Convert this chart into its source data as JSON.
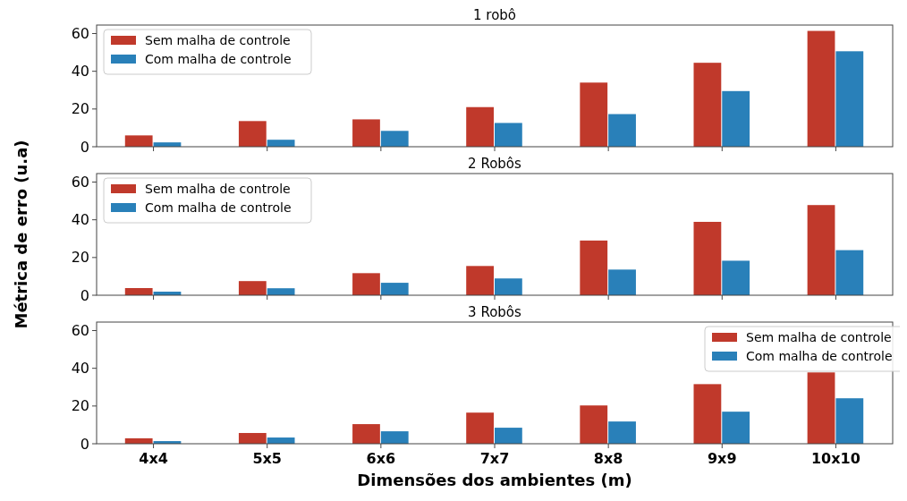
{
  "chart_data": [
    {
      "type": "bar",
      "title": "1 robô",
      "categories": [
        null,
        null,
        null,
        null,
        null,
        null,
        null
      ],
      "series": [
        {
          "name": "Sem malha de controle",
          "color": "#c0392b",
          "values": [
            6,
            13.6,
            14.5,
            21,
            34,
            44.5,
            61.4
          ]
        },
        {
          "name": "Com malha de controle",
          "color": "#2980b9",
          "values": [
            2.3,
            3.7,
            8.4,
            12.6,
            17.3,
            29.5,
            50.6
          ]
        }
      ],
      "ylim": [
        0,
        64.5
      ],
      "yticks": [
        0,
        20,
        40,
        60
      ],
      "legend": "top left"
    },
    {
      "type": "bar",
      "title": "2 Robôs",
      "ylabel": "Métrica de erro (u.a)",
      "categories": [
        null,
        null,
        null,
        null,
        null,
        null,
        null
      ],
      "series": [
        {
          "name": "Sem malha de controle",
          "color": "#c0392b",
          "values": [
            3.8,
            7.5,
            11.7,
            15.5,
            29,
            38.9,
            47.8
          ]
        },
        {
          "name": "Com malha de controle",
          "color": "#2980b9",
          "values": [
            1.9,
            3.7,
            6.6,
            8.9,
            13.6,
            18.3,
            23.9
          ]
        }
      ],
      "ylim": [
        0,
        64.5
      ],
      "yticks": [
        0,
        20,
        40,
        60
      ],
      "legend": "top left"
    },
    {
      "type": "bar",
      "title": "3 Robôs",
      "xlabel": "Dimensões dos ambientes (m)",
      "categories": [
        "4x4",
        "5x5",
        "6x6",
        "7x7",
        "8x8",
        "9x9",
        "10x10"
      ],
      "series": [
        {
          "name": "Sem malha de controle",
          "color": "#c0392b",
          "values": [
            2.9,
            5.7,
            10.4,
            16.5,
            20.3,
            31.6,
            37.8
          ]
        },
        {
          "name": "Com malha de controle",
          "color": "#2980b9",
          "values": [
            1.4,
            3.3,
            6.6,
            8.5,
            11.8,
            17,
            24.1
          ]
        }
      ],
      "ylim": [
        0,
        64.5
      ],
      "yticks": [
        0,
        20,
        40,
        60
      ],
      "legend": "top right"
    }
  ]
}
